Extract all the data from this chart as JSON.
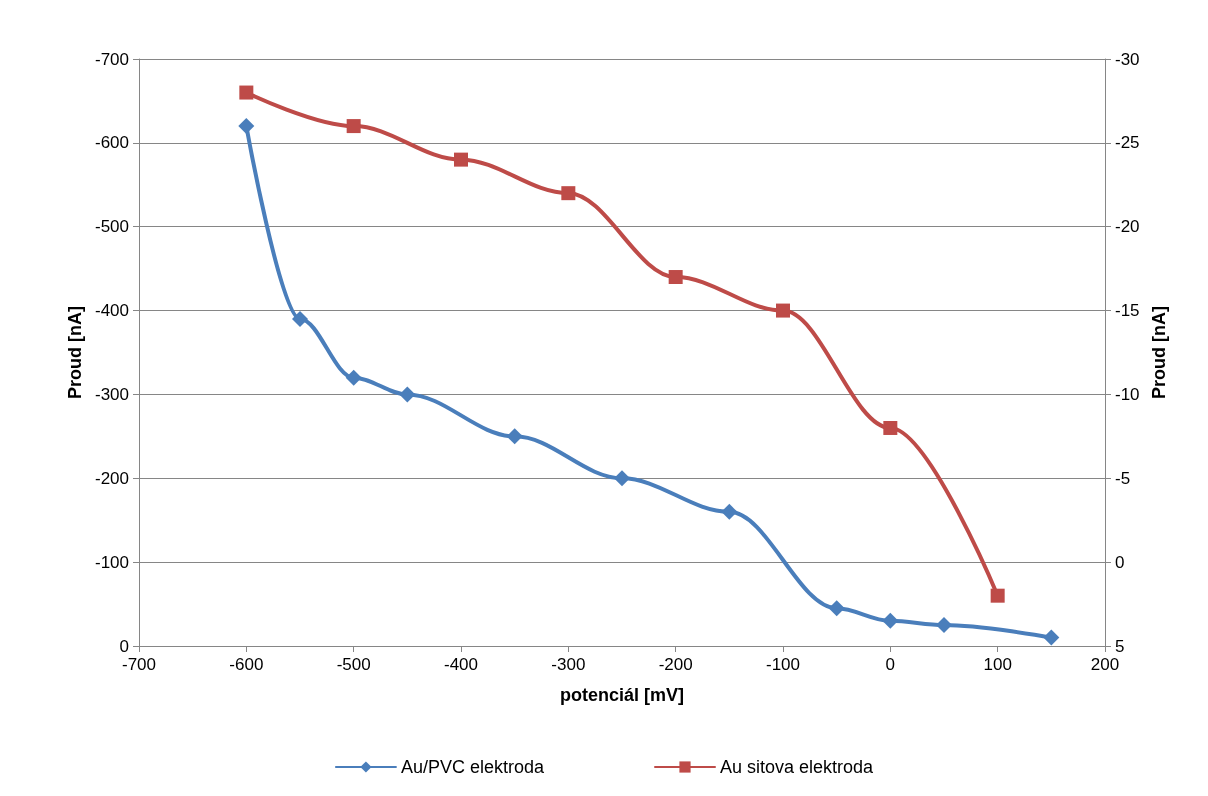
{
  "chart_data": {
    "type": "line",
    "xlabel": "potenciál [mV]",
    "ylabel": "Proud [nA]",
    "y2label": "Proud [nA]",
    "xlim": [
      -700,
      200
    ],
    "xticks": [
      -700,
      -600,
      -500,
      -400,
      -300,
      -200,
      -100,
      0,
      100,
      200
    ],
    "ylim": [
      0,
      -700
    ],
    "yticks": [
      0,
      -100,
      -200,
      -300,
      -400,
      -500,
      -600,
      -700
    ],
    "y2lim": [
      5,
      -30
    ],
    "y2ticks": [
      5,
      0,
      -5,
      -10,
      -15,
      -20,
      -25,
      -30
    ],
    "grid": "y",
    "legend": "bottom",
    "series": [
      {
        "name": "Au/PVC elektroda",
        "color": "#4a7ebb",
        "marker": "diamond",
        "x": [
          -600,
          -550,
          -500,
          -450,
          -350,
          -250,
          -150,
          -50,
          0,
          50,
          150
        ],
        "values": [
          -620,
          -390,
          -320,
          -300,
          -250,
          -200,
          -160,
          -45,
          -30,
          -25,
          -10
        ]
      },
      {
        "name": "Au sitova elektroda",
        "color": "#be4b48",
        "marker": "square",
        "axis": "y2",
        "x": [
          -600,
          -500,
          -400,
          -300,
          -200,
          -100,
          0,
          100
        ],
        "values": [
          -28,
          -26,
          -24,
          -22,
          -17,
          -15,
          -8,
          2
        ]
      }
    ]
  }
}
